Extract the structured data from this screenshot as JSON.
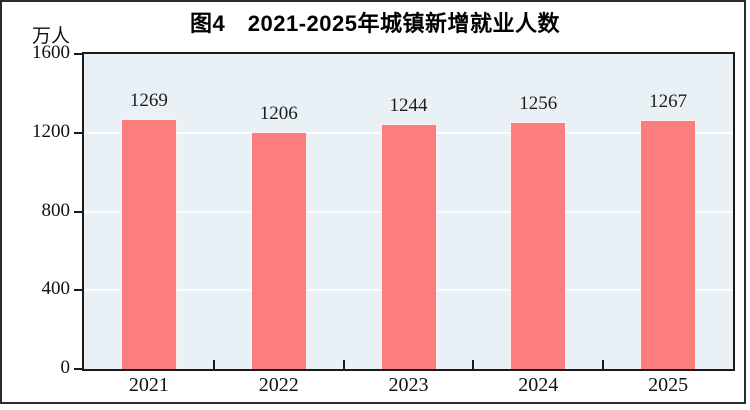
{
  "chart_data": {
    "type": "bar",
    "title": "图4　2021-2025年城镇新增就业人数",
    "unit_label": "万人",
    "categories": [
      "2021",
      "2022",
      "2023",
      "2024",
      "2025"
    ],
    "values": [
      1269,
      1206,
      1244,
      1256,
      1267
    ],
    "ylim": [
      0,
      1600
    ],
    "yticks": [
      0,
      400,
      800,
      1200,
      1600
    ],
    "grid": true,
    "legend_position": "none",
    "colors": {
      "bar_fill": "#fc7d7d",
      "bar_outline": "#fdf0ec",
      "plot_background": "#e9f1f6",
      "gridline": "#fafdfe",
      "axis_frame": "#1a1a1a",
      "outer_frame": "#2b2b2b",
      "label_text": "#111111",
      "value_text": "#1e1e1e",
      "title_text": "#000000"
    }
  }
}
